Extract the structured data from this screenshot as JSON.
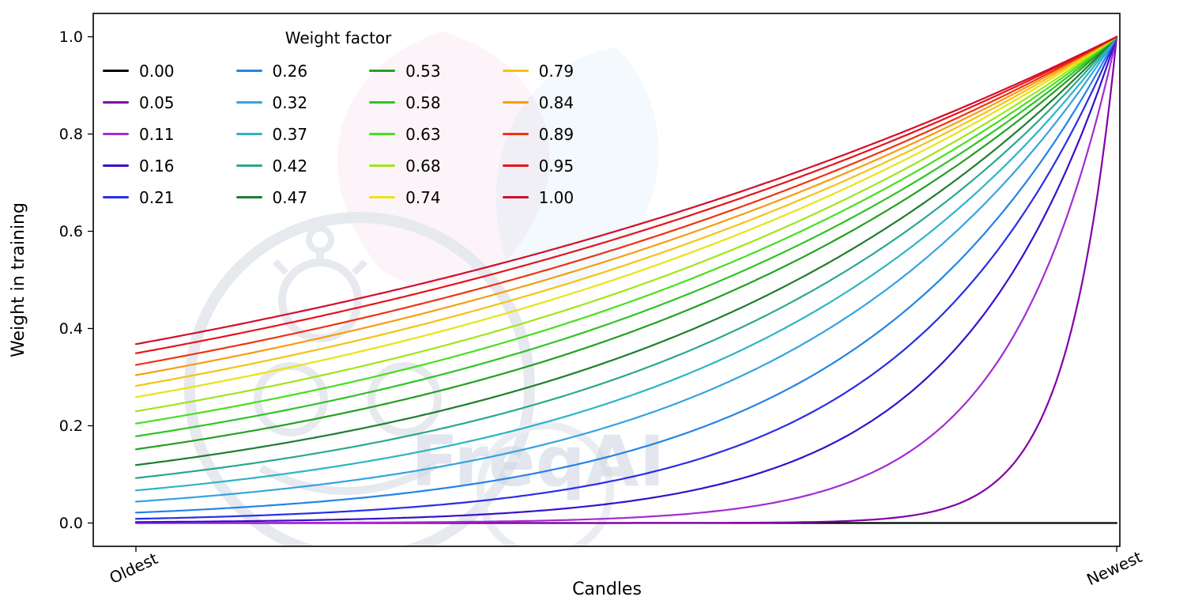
{
  "watermark": {
    "text": "FreqAI"
  },
  "chart_data": {
    "type": "line",
    "title": "",
    "xlabel": "Candles",
    "ylabel": "Weight in training",
    "legend_title": "Weight factor",
    "legend_position": "upper left",
    "legend_columns": 4,
    "grid": false,
    "x_tick_labels": [
      "Oldest",
      "Newest"
    ],
    "x_tick_positions": [
      0,
      1
    ],
    "y_tick_values": [
      0.0,
      0.2,
      0.4,
      0.6,
      0.8,
      1.0
    ],
    "xlim": [
      -0.0435,
      1.0032
    ],
    "ylim": [
      -0.048,
      1.048
    ],
    "x_range_data": [
      0,
      1
    ],
    "formula": "weight(x) = exp(-(1 - x) / weight_factor); weight_factor = 0 gives constant 0",
    "series": [
      {
        "label": "0.00",
        "weight_factor": 0.0,
        "color": "#000000",
        "y_at_oldest": 0.0,
        "y_at_newest": 0.0
      },
      {
        "label": "0.05",
        "weight_factor": 0.05,
        "color": "#8400a7",
        "y_at_oldest": 0.0,
        "y_at_newest": 1.0
      },
      {
        "label": "0.11",
        "weight_factor": 0.11,
        "color": "#a32cd4",
        "y_at_oldest": 0.0,
        "y_at_newest": 1.0
      },
      {
        "label": "0.16",
        "weight_factor": 0.16,
        "color": "#3a0ecb",
        "y_at_oldest": 0.0,
        "y_at_newest": 1.0
      },
      {
        "label": "0.21",
        "weight_factor": 0.21,
        "color": "#2a2de6",
        "y_at_oldest": 0.01,
        "y_at_newest": 1.0
      },
      {
        "label": "0.26",
        "weight_factor": 0.26,
        "color": "#2583e6",
        "y_at_oldest": 0.02,
        "y_at_newest": 1.0
      },
      {
        "label": "0.32",
        "weight_factor": 0.32,
        "color": "#35a3e0",
        "y_at_oldest": 0.04,
        "y_at_newest": 1.0
      },
      {
        "label": "0.37",
        "weight_factor": 0.37,
        "color": "#2cb5c4",
        "y_at_oldest": 0.07,
        "y_at_newest": 1.0
      },
      {
        "label": "0.42",
        "weight_factor": 0.42,
        "color": "#2aa88f",
        "y_at_oldest": 0.09,
        "y_at_newest": 1.0
      },
      {
        "label": "0.47",
        "weight_factor": 0.47,
        "color": "#1e7d2e",
        "y_at_oldest": 0.12,
        "y_at_newest": 1.0
      },
      {
        "label": "0.53",
        "weight_factor": 0.53,
        "color": "#23a023",
        "y_at_oldest": 0.15,
        "y_at_newest": 1.0
      },
      {
        "label": "0.58",
        "weight_factor": 0.58,
        "color": "#2ec426",
        "y_at_oldest": 0.18,
        "y_at_newest": 1.0
      },
      {
        "label": "0.63",
        "weight_factor": 0.63,
        "color": "#47e01f",
        "y_at_oldest": 0.2,
        "y_at_newest": 1.0
      },
      {
        "label": "0.68",
        "weight_factor": 0.68,
        "color": "#9fe619",
        "y_at_oldest": 0.23,
        "y_at_newest": 1.0
      },
      {
        "label": "0.74",
        "weight_factor": 0.74,
        "color": "#e8e414",
        "y_at_oldest": 0.26,
        "y_at_newest": 1.0
      },
      {
        "label": "0.79",
        "weight_factor": 0.79,
        "color": "#f6c213",
        "y_at_oldest": 0.28,
        "y_at_newest": 1.0
      },
      {
        "label": "0.84",
        "weight_factor": 0.84,
        "color": "#f89c10",
        "y_at_oldest": 0.3,
        "y_at_newest": 1.0
      },
      {
        "label": "0.89",
        "weight_factor": 0.89,
        "color": "#ee3311",
        "y_at_oldest": 0.32,
        "y_at_newest": 1.0
      },
      {
        "label": "0.95",
        "weight_factor": 0.95,
        "color": "#e8131a",
        "y_at_oldest": 0.35,
        "y_at_newest": 1.0
      },
      {
        "label": "1.00",
        "weight_factor": 1.0,
        "color": "#d10f2a",
        "y_at_oldest": 0.37,
        "y_at_newest": 1.0
      }
    ]
  }
}
